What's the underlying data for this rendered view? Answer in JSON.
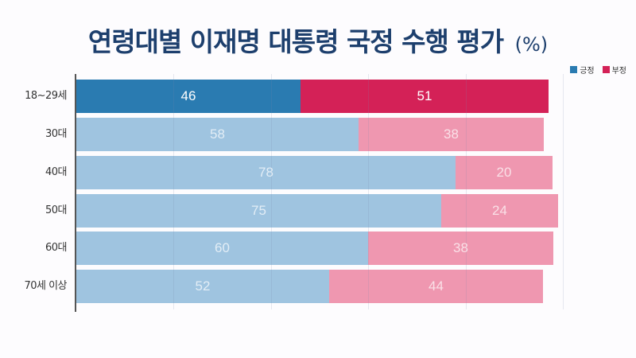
{
  "title": "연령대별 이재명 대통령 국정 수행 평가",
  "unit": "(%)",
  "legend": [
    {
      "label": "긍정",
      "color": "#2a7bb1"
    },
    {
      "label": "부정",
      "color": "#d42157"
    }
  ],
  "colors": {
    "positive_highlight": "#2a7bb1",
    "negative_highlight": "#d42157",
    "positive": "#9fc4e0",
    "negative": "#ef97b0",
    "title": "#1d3f6d"
  },
  "rows": [
    {
      "label": "18~29세",
      "positive": "46",
      "negative": "51",
      "highlight": true
    },
    {
      "label": "30대",
      "positive": "58",
      "negative": "38",
      "highlight": false
    },
    {
      "label": "40대",
      "positive": "78",
      "negative": "20",
      "highlight": false
    },
    {
      "label": "50대",
      "positive": "75",
      "negative": "24",
      "highlight": false
    },
    {
      "label": "60대",
      "positive": "60",
      "negative": "38",
      "highlight": false
    },
    {
      "label": "70세 이상",
      "positive": "52",
      "negative": "44",
      "highlight": false
    }
  ],
  "chart_data": {
    "type": "bar",
    "orientation": "horizontal",
    "stacked": true,
    "title": "연령대별 이재명 대통령 국정 수행 평가 (%)",
    "categories": [
      "18~29세",
      "30대",
      "40대",
      "50대",
      "60대",
      "70세 이상"
    ],
    "series": [
      {
        "name": "긍정",
        "values": [
          46,
          58,
          78,
          75,
          60,
          52
        ]
      },
      {
        "name": "부정",
        "values": [
          51,
          38,
          20,
          24,
          38,
          44
        ]
      }
    ],
    "xlim": [
      0,
      100
    ],
    "grid": true,
    "legend_position": "top-right",
    "xlabel": "",
    "ylabel": ""
  }
}
